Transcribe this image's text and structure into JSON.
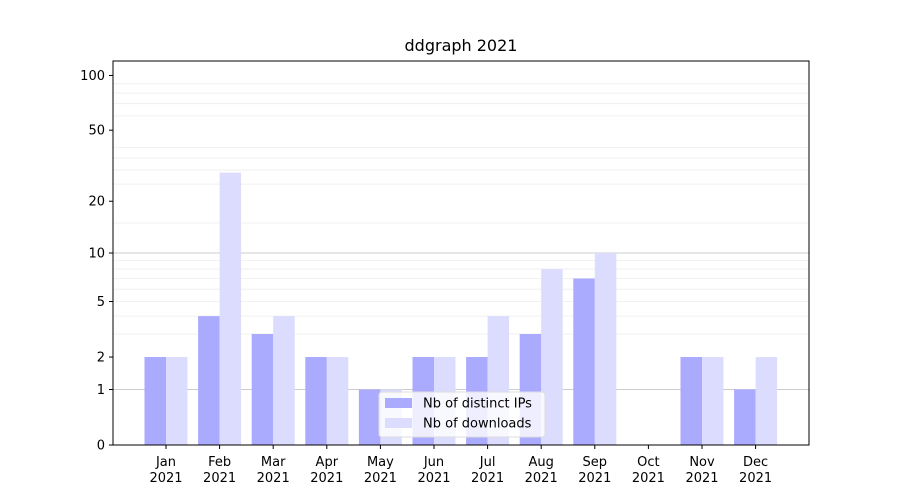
{
  "chart_data": {
    "type": "bar",
    "title": "ddgraph 2021",
    "xlabel": "",
    "ylabel": "",
    "yscale": "log(y+1)",
    "ylim": [
      0,
      120
    ],
    "yticks": [
      0,
      1,
      2,
      5,
      10,
      20,
      50,
      100
    ],
    "grid": true,
    "legend_position": "bottom-center",
    "categories": [
      [
        "Jan",
        "2021"
      ],
      [
        "Feb",
        "2021"
      ],
      [
        "Mar",
        "2021"
      ],
      [
        "Apr",
        "2021"
      ],
      [
        "May",
        "2021"
      ],
      [
        "Jun",
        "2021"
      ],
      [
        "Jul",
        "2021"
      ],
      [
        "Aug",
        "2021"
      ],
      [
        "Sep",
        "2021"
      ],
      [
        "Oct",
        "2021"
      ],
      [
        "Nov",
        "2021"
      ],
      [
        "Dec",
        "2021"
      ]
    ],
    "series": [
      {
        "name": "Nb of distinct IPs",
        "color": "#aaaaff",
        "values": [
          2,
          4,
          3,
          2,
          1,
          2,
          2,
          3,
          7,
          0,
          2,
          1
        ]
      },
      {
        "name": "Nb of downloads",
        "color": "#dcdcff",
        "values": [
          2,
          29,
          4,
          2,
          1,
          2,
          4,
          8,
          10,
          0,
          2,
          2
        ]
      }
    ]
  }
}
